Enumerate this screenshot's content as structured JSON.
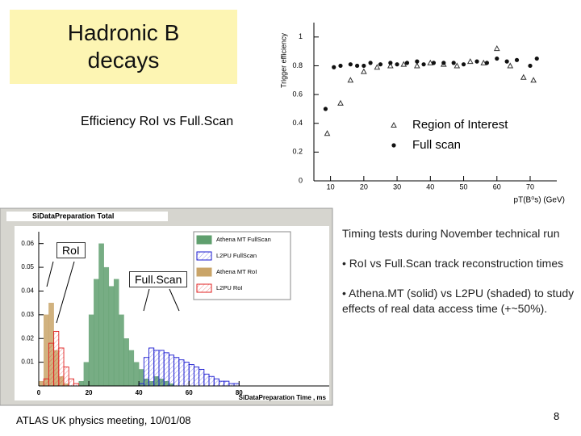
{
  "title": "Hadronic B decays",
  "caption": "Efficiency RoI vs Full.Scan",
  "chart_data": [
    {
      "type": "scatter",
      "y_label": "Trigger efficiency",
      "x_label": "pT(B⁰s) (GeV)",
      "xlim": [
        5,
        78
      ],
      "ylim": [
        0,
        1.1
      ],
      "xticks": [
        10,
        20,
        30,
        40,
        50,
        60,
        70
      ],
      "yticks": [
        0,
        0.2,
        0.4,
        0.6,
        0.8,
        1
      ],
      "series": [
        {
          "name": "Region of Interest",
          "marker": "triangle",
          "color": "#333333",
          "x": [
            9,
            13,
            16,
            20,
            24,
            28,
            32,
            36,
            40,
            44,
            48,
            52,
            56,
            60,
            64,
            68,
            71
          ],
          "values": [
            0.33,
            0.54,
            0.7,
            0.76,
            0.79,
            0.8,
            0.81,
            0.8,
            0.82,
            0.81,
            0.8,
            0.83,
            0.82,
            0.92,
            0.8,
            0.72,
            0.7
          ]
        },
        {
          "name": "Full scan",
          "marker": "dot",
          "color": "#111111",
          "x": [
            8.5,
            11,
            13,
            16,
            18,
            20,
            22,
            25,
            28,
            30,
            33,
            36,
            38,
            41,
            44,
            47,
            50,
            54,
            57,
            60,
            63,
            66,
            70,
            72
          ],
          "values": [
            0.5,
            0.79,
            0.8,
            0.81,
            0.8,
            0.8,
            0.82,
            0.81,
            0.82,
            0.81,
            0.82,
            0.83,
            0.81,
            0.82,
            0.82,
            0.82,
            0.81,
            0.83,
            0.82,
            0.85,
            0.83,
            0.84,
            0.8,
            0.85
          ]
        }
      ]
    },
    {
      "type": "histogram",
      "title": "SiDataPreparation Total",
      "x_label": "SiDataPreparation Time , ms",
      "xlim": [
        0,
        116
      ],
      "ylim": [
        0,
        0.065
      ],
      "xticks": [
        0,
        20,
        40,
        60,
        80
      ],
      "yticks": [
        0.01,
        0.02,
        0.03,
        0.04,
        0.05,
        0.06
      ],
      "annotations": [
        "RoI",
        "Full.Scan"
      ],
      "bins": [
        0,
        2,
        4,
        6,
        8,
        10,
        12,
        14,
        16,
        18,
        20,
        22,
        24,
        26,
        28,
        30,
        32,
        34,
        36,
        38,
        40,
        42,
        44,
        46,
        48,
        50,
        52,
        54,
        56,
        58,
        60,
        62,
        64,
        66,
        68,
        70,
        72,
        74,
        76,
        78,
        80,
        82,
        84,
        86,
        88,
        90,
        92,
        94,
        96,
        98,
        100
      ],
      "series": [
        {
          "name": "Athena MT FullScan",
          "color": "#5f9f6e",
          "fill": "solid",
          "values": [
            0,
            0,
            0,
            0,
            0,
            0,
            0,
            0,
            0.002,
            0.01,
            0.03,
            0.045,
            0.06,
            0.05,
            0.042,
            0.045,
            0.03,
            0.02,
            0.015,
            0.01,
            0.007,
            0.003,
            0.002,
            0.004,
            0.003,
            0.002,
            0.001,
            0,
            0,
            0,
            0,
            0,
            0,
            0,
            0,
            0,
            0,
            0,
            0,
            0,
            0,
            0,
            0,
            0,
            0,
            0,
            0,
            0,
            0,
            0
          ]
        },
        {
          "name": "L2PU FullScan",
          "color": "#1a1ad0",
          "fill": "hatched",
          "values": [
            0,
            0,
            0,
            0,
            0,
            0,
            0,
            0,
            0,
            0,
            0,
            0,
            0,
            0,
            0,
            0,
            0,
            0,
            0,
            0,
            0.001,
            0.012,
            0.016,
            0.015,
            0.015,
            0.014,
            0.013,
            0.012,
            0.011,
            0.01,
            0.009,
            0.008,
            0.007,
            0.005,
            0.004,
            0.003,
            0.002,
            0.002,
            0.001,
            0.001,
            0,
            0,
            0,
            0,
            0,
            0,
            0,
            0,
            0,
            0
          ]
        },
        {
          "name": "Athena MT RoI",
          "color": "#c9a468",
          "fill": "solid",
          "values": [
            0.002,
            0.03,
            0.035,
            0.015,
            0.004,
            0.001,
            0,
            0,
            0,
            0,
            0,
            0,
            0,
            0,
            0,
            0,
            0,
            0,
            0,
            0,
            0,
            0,
            0,
            0,
            0,
            0,
            0,
            0,
            0,
            0,
            0,
            0,
            0,
            0,
            0,
            0,
            0,
            0,
            0,
            0,
            0,
            0,
            0,
            0,
            0,
            0,
            0,
            0,
            0,
            0
          ]
        },
        {
          "name": "L2PU RoI",
          "color": "#e02020",
          "fill": "hatched",
          "values": [
            0,
            0.003,
            0.018,
            0.023,
            0.016,
            0.008,
            0.003,
            0.001,
            0,
            0,
            0,
            0,
            0,
            0,
            0,
            0,
            0,
            0,
            0,
            0,
            0,
            0,
            0,
            0,
            0,
            0,
            0,
            0,
            0,
            0,
            0,
            0,
            0,
            0,
            0,
            0,
            0,
            0,
            0,
            0,
            0,
            0,
            0,
            0,
            0,
            0,
            0,
            0,
            0,
            0
          ]
        }
      ]
    }
  ],
  "notes": {
    "heading": "Timing tests during November technical run",
    "bullets": [
      "• RoI vs Full.Scan track reconstruction times",
      "• Athena.MT (solid) vs L2PU (shaded) to study effects of real data access time (+~50%)."
    ]
  },
  "footer": "ATLAS UK physics meeting, 10/01/08",
  "page_number": 8
}
